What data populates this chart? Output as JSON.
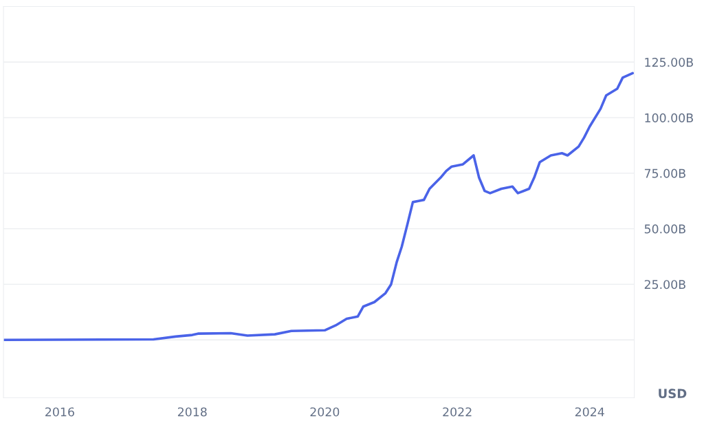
{
  "chart_data": {
    "type": "line",
    "x": [
      "2015-02-25",
      "2017-06",
      "2017-10",
      "2018-01",
      "2018-02",
      "2018-08",
      "2018-11",
      "2019-04",
      "2019-07",
      "2020-01",
      "2020-03",
      "2020-05",
      "2020-07",
      "2020-08",
      "2020-10",
      "2020-12",
      "2021-01",
      "2021-02",
      "2021-03",
      "2021-04",
      "2021-05",
      "2021-06",
      "2021-07",
      "2021-08",
      "2021-10",
      "2021-11",
      "2021-12",
      "2022-02",
      "2022-04",
      "2022-05",
      "2022-06",
      "2022-07",
      "2022-09",
      "2022-11",
      "2022-12",
      "2023-02",
      "2023-03",
      "2023-04",
      "2023-06",
      "2023-08",
      "2023-09",
      "2023-11",
      "2023-12",
      "2024-01",
      "2024-03",
      "2024-04",
      "2024-06",
      "2024-07",
      "2024-08-25"
    ],
    "series": [
      {
        "color": "#4a63e8",
        "values": [
          0,
          0.2,
          1.5,
          2.2,
          2.8,
          3,
          1.9,
          2.5,
          4,
          4.3,
          6.5,
          9.5,
          10.5,
          15,
          17,
          21,
          25,
          35,
          42,
          52,
          62,
          62.5,
          63,
          68,
          73,
          76,
          78,
          79,
          83,
          73,
          67,
          66,
          68,
          69,
          66,
          68,
          73,
          80,
          83,
          84,
          83,
          87,
          91,
          96,
          104,
          110,
          113,
          118,
          120
        ]
      }
    ],
    "xlim": [
      "2015-02-25",
      "2024-09-03"
    ],
    "xticks": [
      "2016",
      "2018",
      "2020",
      "2022",
      "2024"
    ],
    "ylim": [
      -26,
      150
    ],
    "yticks": [
      {
        "value": 0,
        "label": null
      },
      {
        "value": 25,
        "label": "25.00B"
      },
      {
        "value": 50,
        "label": "50.00B"
      },
      {
        "value": 75,
        "label": "75.00B"
      },
      {
        "value": 100,
        "label": "100.00B"
      },
      {
        "value": 125,
        "label": "125.00B"
      }
    ],
    "grid": "y",
    "line_style": "solid",
    "marker": "none",
    "annotations": [
      "USD"
    ]
  }
}
